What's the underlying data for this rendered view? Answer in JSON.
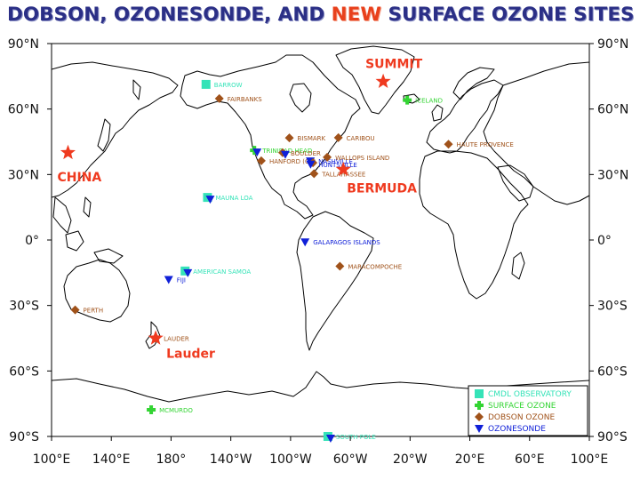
{
  "title": {
    "part1": "DOBSON, OZONESONDE, AND ",
    "part2": "NEW",
    "part3": " SURFACE OZONE SITES"
  },
  "colors": {
    "title": "#2b2f86",
    "accent": "#ef3a1f",
    "cmdl": "#35e3b8",
    "surface": "#33d433",
    "dobson": "#a0521a",
    "sonde": "#1020d8",
    "land": "#000000"
  },
  "axes": {
    "lat_labels": [
      "90°N",
      "60°N",
      "30°N",
      "0°",
      "30°S",
      "60°S",
      "90°S"
    ],
    "lon_labels": [
      "100°E",
      "140°E",
      "180°",
      "140°W",
      "100°W",
      "60°W",
      "20°W",
      "20°E",
      "60°E",
      "100°E"
    ]
  },
  "legend": [
    {
      "type": "cmdl",
      "label": "CMDL OBSERVATORY"
    },
    {
      "type": "surface",
      "label": "SURFACE OZONE"
    },
    {
      "type": "dobson",
      "label": "DOBSON OZONE"
    },
    {
      "type": "sonde",
      "label": "OZONESONDE"
    }
  ],
  "new_sites": [
    {
      "label": "SUMMIT",
      "lon": -38,
      "lat": 72.6
    },
    {
      "label": "CHINA",
      "lon": 111,
      "lat": 40
    },
    {
      "label": "BERMUDA",
      "lon": -64.7,
      "lat": 32.3
    },
    {
      "label": "Lauder",
      "lon": 169.7,
      "lat": -45
    }
  ],
  "sites": [
    {
      "name": "BARROW",
      "lon": -156.6,
      "lat": 71.3,
      "types": [
        "cmdl"
      ]
    },
    {
      "name": "FAIRBANKS",
      "lon": -147.7,
      "lat": 64.8,
      "types": [
        "dobson"
      ]
    },
    {
      "name": "ICELAND",
      "lon": -21.9,
      "lat": 64.1,
      "types": [
        "surface"
      ]
    },
    {
      "name": "CARIBOU",
      "lon": -68,
      "lat": 46.9,
      "types": [
        "dobson"
      ]
    },
    {
      "name": "BISMARK",
      "lon": -100.8,
      "lat": 46.8,
      "types": [
        "dobson"
      ]
    },
    {
      "name": "HAUTE PROVENCE",
      "lon": 5.7,
      "lat": 43.9,
      "types": [
        "dobson"
      ]
    },
    {
      "name": "TRINIDAD HEAD",
      "lon": -124.2,
      "lat": 41.1,
      "types": [
        "surface",
        "sonde"
      ]
    },
    {
      "name": "BOULDER",
      "lon": -105.3,
      "lat": 40,
      "types": [
        "dobson",
        "sonde"
      ]
    },
    {
      "name": "HANFORD (CA)",
      "lon": -119.6,
      "lat": 36.3,
      "types": [
        "dobson"
      ]
    },
    {
      "name": "NASHVILLE",
      "lon": -86.8,
      "lat": 36.2,
      "types": [
        "sonde",
        "dobson"
      ]
    },
    {
      "name": "WALLOPS ISLAND",
      "lon": -75.5,
      "lat": 37.9,
      "types": [
        "dobson"
      ]
    },
    {
      "name": "TALLAHASSEE",
      "lon": -84.3,
      "lat": 30.4,
      "types": [
        "dobson"
      ]
    },
    {
      "name": "HUNTSVILLE",
      "lon": -86.6,
      "lat": 34.7,
      "types": [
        "sonde"
      ]
    },
    {
      "name": "MAUNA LOA",
      "lon": -155.6,
      "lat": 19.5,
      "types": [
        "cmdl",
        "sonde"
      ]
    },
    {
      "name": "GALAPAGOS ISLANDS",
      "lon": -90.3,
      "lat": -0.9,
      "types": [
        "sonde"
      ]
    },
    {
      "name": "MARACOMPOCHE",
      "lon": -67,
      "lat": -12,
      "types": [
        "dobson"
      ]
    },
    {
      "name": "AMERICAN SAMOA",
      "lon": -170.6,
      "lat": -14.2,
      "types": [
        "cmdl",
        "sonde"
      ]
    },
    {
      "name": "FIJI",
      "lon": 178.4,
      "lat": -18.1,
      "types": [
        "sonde"
      ]
    },
    {
      "name": "PERTH",
      "lon": 115.8,
      "lat": -32,
      "types": [
        "dobson"
      ]
    },
    {
      "name": "LAUDER",
      "lon": 169.7,
      "lat": -45,
      "types": [
        "dobson"
      ]
    },
    {
      "name": "MCMURDO",
      "lon": 166.7,
      "lat": -77.8,
      "types": [
        "surface"
      ]
    },
    {
      "name": "SOUTH POLE",
      "lon": -75,
      "lat": -90,
      "types": [
        "cmdl",
        "sonde"
      ]
    }
  ]
}
